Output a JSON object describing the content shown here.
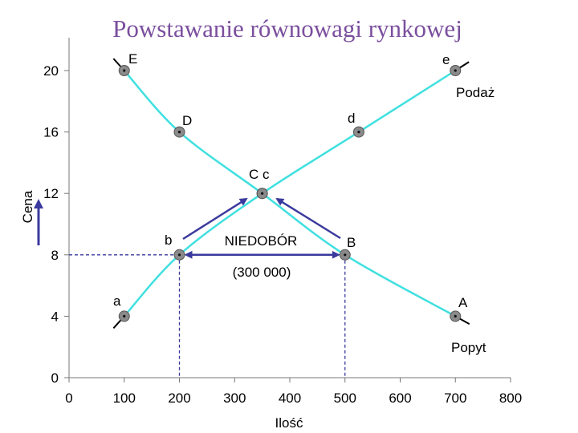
{
  "chart_data": {
    "type": "line",
    "title": "Powstawanie równowagi rynkowej",
    "xlabel": "Ilość",
    "ylabel": "Cena",
    "xlim": [
      0,
      800
    ],
    "ylim": [
      0,
      21
    ],
    "x_ticks": [
      "0",
      "100",
      "200",
      "300",
      "400",
      "500",
      "600",
      "700",
      "800"
    ],
    "y_ticks": [
      "0",
      "4",
      "8",
      "12",
      "16",
      "20"
    ],
    "x_tick_values": [
      0,
      100,
      200,
      300,
      400,
      500,
      600,
      700,
      800
    ],
    "y_tick_values": [
      0,
      4,
      8,
      12,
      16,
      20
    ],
    "grid": false,
    "line_color": "#40e0e0",
    "series": [
      {
        "name": "Podaż",
        "points": [
          {
            "label": "a",
            "x": 100,
            "y": 4
          },
          {
            "label": "b",
            "x": 200,
            "y": 8
          },
          {
            "label": "c",
            "x": 350,
            "y": 12
          },
          {
            "label": "d",
            "x": 525,
            "y": 16
          },
          {
            "label": "e",
            "x": 700,
            "y": 20
          }
        ]
      },
      {
        "name": "Popyt",
        "points": [
          {
            "label": "E",
            "x": 100,
            "y": 20
          },
          {
            "label": "D",
            "x": 200,
            "y": 16
          },
          {
            "label": "C",
            "x": 350,
            "y": 12
          },
          {
            "label": "B",
            "x": 500,
            "y": 8
          },
          {
            "label": "A",
            "x": 700,
            "y": 4
          }
        ]
      }
    ],
    "annotations": {
      "shortage_label": "NIEDOBÓR",
      "shortage_amount": "(300 000)",
      "shortage_price": 8,
      "shortage_from_x": 200,
      "shortage_to_x": 500,
      "equilibrium_label": "C c",
      "arrow_color": "#3a3a9e"
    }
  }
}
